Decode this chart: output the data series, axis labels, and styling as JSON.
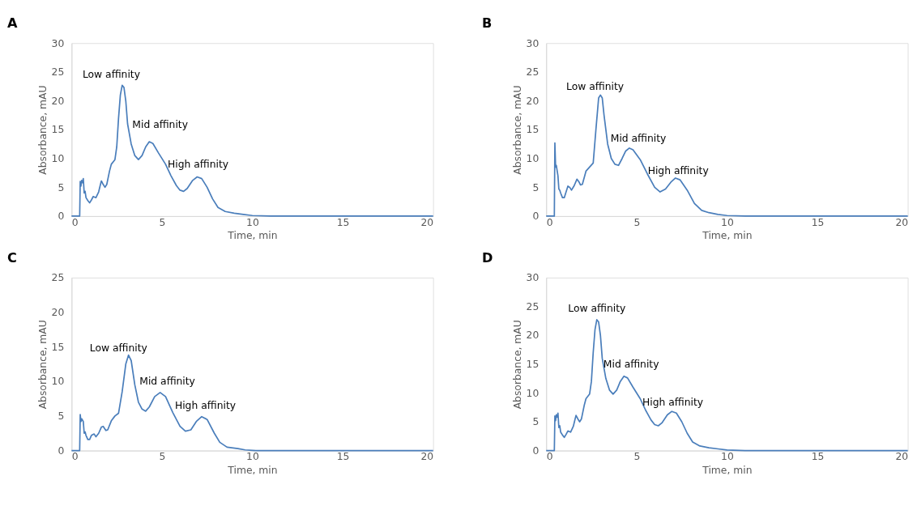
{
  "chart_data": [
    {
      "type": "line",
      "title": "A",
      "xlabel": "Time, min",
      "ylabel": "Absorbance, mAU",
      "xlim": [
        0,
        20
      ],
      "xticks": [
        0,
        5,
        10,
        15,
        20
      ],
      "ylim": [
        0,
        30
      ],
      "yticks": [
        0,
        5,
        10,
        15,
        20,
        25,
        30
      ],
      "grid": false,
      "x": [
        0,
        0.45,
        0.48,
        0.52,
        0.56,
        0.6,
        0.65,
        0.7,
        0.75,
        0.8,
        0.9,
        1.0,
        1.1,
        1.2,
        1.35,
        1.5,
        1.6,
        1.65,
        1.75,
        1.85,
        1.95,
        2.1,
        2.2,
        2.4,
        2.5,
        2.6,
        2.7,
        2.8,
        2.9,
        3.0,
        3.1,
        3.3,
        3.5,
        3.7,
        3.9,
        4.1,
        4.3,
        4.5,
        4.8,
        5.2,
        5.5,
        5.8,
        6.0,
        6.2,
        6.4,
        6.7,
        6.95,
        7.2,
        7.5,
        7.8,
        8.1,
        8.5,
        9.0,
        9.5,
        10,
        11,
        12,
        20
      ],
      "series": [
        {
          "color": "#4a7ebb",
          "values": [
            0,
            0,
            6,
            5.2,
            6.2,
            5.8,
            6.5,
            4,
            4.3,
            3.2,
            2.7,
            2.3,
            2.8,
            3.4,
            3.2,
            4.2,
            5.5,
            6.1,
            5.5,
            5,
            5.5,
            7.8,
            9,
            9.8,
            12,
            17,
            21,
            22.7,
            22.3,
            20,
            16,
            12.5,
            10.5,
            9.8,
            10.5,
            12,
            12.9,
            12.6,
            11,
            9,
            7,
            5.3,
            4.5,
            4.3,
            4.8,
            6.2,
            6.8,
            6.5,
            5,
            3,
            1.5,
            0.8,
            0.5,
            0.3,
            0.1,
            0,
            0,
            0
          ]
        }
      ],
      "annotations": [
        "Low affinity",
        "Mid affinity",
        "High affinity"
      ]
    },
    {
      "type": "line",
      "title": "B",
      "xlabel": "Time, min",
      "ylabel": "Absorbance, mAU",
      "xlim": [
        0,
        20
      ],
      "xticks": [
        0,
        5,
        10,
        15,
        20
      ],
      "ylim": [
        0,
        30
      ],
      "yticks": [
        0,
        5,
        10,
        15,
        20,
        25,
        30
      ],
      "grid": false,
      "x": [
        0,
        0.45,
        0.48,
        0.52,
        0.56,
        0.65,
        0.7,
        0.75,
        0.8,
        0.9,
        1.0,
        1.1,
        1.2,
        1.3,
        1.4,
        1.55,
        1.7,
        1.8,
        1.9,
        2.0,
        2.2,
        2.4,
        2.6,
        2.75,
        2.9,
        3.0,
        3.1,
        3.2,
        3.4,
        3.6,
        3.8,
        4.0,
        4.2,
        4.4,
        4.6,
        4.8,
        5.2,
        5.6,
        6.0,
        6.3,
        6.6,
        6.9,
        7.15,
        7.4,
        7.8,
        8.2,
        8.6,
        9.0,
        9.5,
        10,
        11,
        12,
        20
      ],
      "series": [
        {
          "color": "#4a7ebb",
          "values": [
            0,
            0,
            12.7,
            8.5,
            8.8,
            7,
            4.7,
            4.5,
            4,
            3.2,
            3.2,
            4.2,
            5.2,
            5,
            4.5,
            5.3,
            6.4,
            6,
            5.4,
            5.5,
            7.8,
            8.5,
            9.2,
            15,
            20.5,
            21,
            20.5,
            17.5,
            12.5,
            10,
            9,
            8.8,
            10,
            11.3,
            11.8,
            11.5,
            9.8,
            7.3,
            5.0,
            4.2,
            4.7,
            5.9,
            6.6,
            6.3,
            4.5,
            2.2,
            1,
            0.6,
            0.3,
            0.1,
            0,
            0,
            0
          ]
        }
      ],
      "annotations": [
        "Low affinity",
        "Mid affinity",
        "High affinity"
      ]
    },
    {
      "type": "line",
      "title": "C",
      "xlabel": "Time, min",
      "ylabel": "Absorbance, mAU",
      "xlim": [
        0,
        20
      ],
      "xticks": [
        0,
        5,
        10,
        15,
        20
      ],
      "ylim": [
        0,
        25
      ],
      "yticks": [
        0,
        5,
        10,
        15,
        20,
        25
      ],
      "grid": false,
      "x": [
        0,
        0.45,
        0.48,
        0.52,
        0.56,
        0.65,
        0.7,
        0.75,
        0.8,
        0.9,
        1.0,
        1.1,
        1.25,
        1.35,
        1.5,
        1.65,
        1.75,
        1.9,
        2.0,
        2.2,
        2.4,
        2.6,
        2.8,
        3.0,
        3.15,
        3.3,
        3.5,
        3.7,
        3.9,
        4.1,
        4.3,
        4.6,
        4.9,
        5.2,
        5.6,
        6.0,
        6.3,
        6.6,
        6.9,
        7.2,
        7.5,
        7.9,
        8.2,
        8.6,
        9.2,
        9.6,
        10.2,
        12,
        20
      ],
      "series": [
        {
          "color": "#4a7ebb",
          "values": [
            0,
            0,
            5.2,
            4.2,
            4.6,
            4.2,
            2.5,
            2.7,
            2.2,
            1.6,
            1.6,
            2.2,
            2.4,
            2,
            2.5,
            3.4,
            3.5,
            2.9,
            3.0,
            4.3,
            5,
            5.4,
            8.5,
            12.5,
            13.8,
            13,
            9.5,
            7,
            6,
            5.7,
            6.3,
            7.8,
            8.4,
            7.8,
            5.5,
            3.5,
            2.8,
            3,
            4.2,
            4.9,
            4.5,
            2.5,
            1.2,
            0.5,
            0.3,
            0.1,
            0,
            0,
            0
          ]
        }
      ],
      "annotations": [
        "Low affinity",
        "Mid affinity",
        "High affinity"
      ]
    },
    {
      "type": "line",
      "title": "D",
      "xlabel": "Time, min",
      "ylabel": "Absorbance, mAU",
      "xlim": [
        0,
        20
      ],
      "xticks": [
        0,
        5,
        10,
        15,
        20
      ],
      "ylim": [
        0,
        30
      ],
      "yticks": [
        0,
        5,
        10,
        15,
        20,
        25,
        30
      ],
      "grid": false,
      "x": [
        0,
        0.45,
        0.48,
        0.52,
        0.56,
        0.6,
        0.65,
        0.7,
        0.75,
        0.8,
        0.9,
        1.0,
        1.1,
        1.2,
        1.35,
        1.5,
        1.6,
        1.65,
        1.75,
        1.85,
        1.95,
        2.1,
        2.2,
        2.4,
        2.5,
        2.6,
        2.7,
        2.8,
        2.9,
        3.0,
        3.1,
        3.3,
        3.5,
        3.7,
        3.9,
        4.1,
        4.3,
        4.5,
        4.8,
        5.2,
        5.5,
        5.8,
        6.0,
        6.2,
        6.4,
        6.7,
        6.95,
        7.2,
        7.5,
        7.8,
        8.1,
        8.5,
        9.0,
        9.5,
        10,
        11,
        12,
        20
      ],
      "series": [
        {
          "color": "#4a7ebb",
          "values": [
            0,
            0,
            6,
            5.2,
            6.2,
            5.8,
            6.5,
            4,
            4.3,
            3.2,
            2.7,
            2.3,
            2.8,
            3.4,
            3.2,
            4.2,
            5.5,
            6.1,
            5.5,
            5,
            5.5,
            7.8,
            9,
            9.8,
            12,
            17,
            21,
            22.7,
            22.3,
            20,
            16,
            12.5,
            10.5,
            9.8,
            10.5,
            12,
            12.9,
            12.6,
            11,
            9,
            7,
            5.3,
            4.5,
            4.3,
            4.8,
            6.2,
            6.8,
            6.5,
            5,
            3,
            1.5,
            0.8,
            0.5,
            0.3,
            0.1,
            0,
            0,
            0
          ]
        }
      ],
      "annotations": [
        "Low affinity",
        "Mid affinity",
        "High affinity"
      ]
    }
  ]
}
